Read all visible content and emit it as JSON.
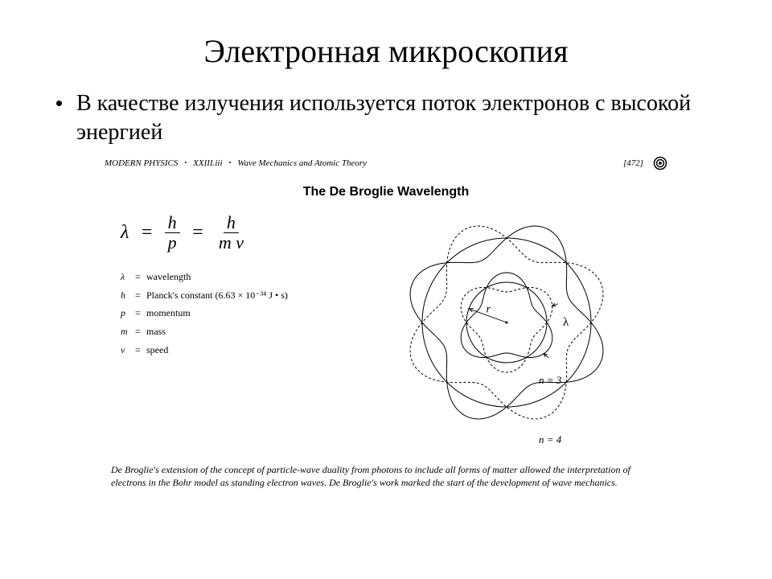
{
  "title": "Электронная микроскопия",
  "bullet_text": "В качестве излучения используется поток электронов с высокой энергией",
  "figure": {
    "header": {
      "book": "MODERN PHYSICS",
      "section": "XXIII.iii",
      "topic": "Wave Mechanics and Atomic Theory",
      "page": "[472]"
    },
    "title": "The De Broglie Wavelength",
    "formula": {
      "lambda": "λ",
      "eq": "=",
      "h": "h",
      "p": "p",
      "m": "m",
      "v": "v",
      "mv": "m v"
    },
    "legend": [
      {
        "sym": "λ",
        "desc": "wavelength"
      },
      {
        "sym": "h",
        "desc": "Planck's constant (6.63 × 10⁻³⁴ J • s)"
      },
      {
        "sym": "p",
        "desc": "momentum"
      },
      {
        "sym": "m",
        "desc": "mass"
      },
      {
        "sym": "v",
        "desc": "speed"
      }
    ],
    "diagram": {
      "inner_n": "n = 3",
      "outer_n": "n = 4",
      "r_label": "r",
      "lambda_label": "λ",
      "stroke": "#000000",
      "dash": "3 2.5"
    },
    "caption": "De Broglie's extension of the concept of particle-wave duality from photons to include all forms of matter allowed the interpretation of electrons in the Bohr model as standing electron waves. De Broglie's work marked the start of the development of wave mechanics."
  }
}
